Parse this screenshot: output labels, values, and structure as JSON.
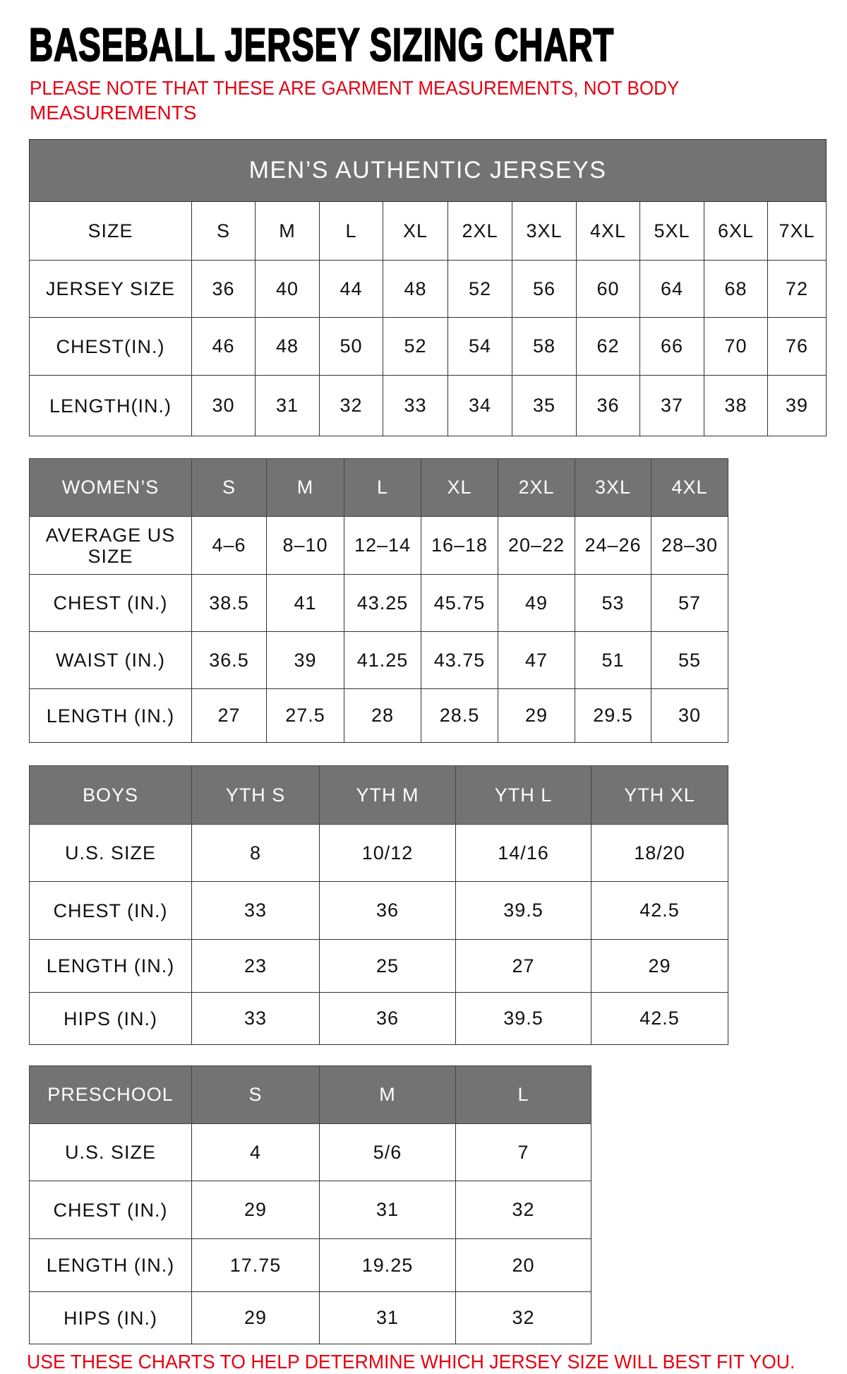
{
  "title": "BASEBALL JERSEY SIZING CHART",
  "note_line1": "PLEASE NOTE THAT THESE ARE GARMENT MEASUREMENTS, NOT BODY",
  "note_line2": "MEASUREMENTS",
  "footer": "USE THESE CHARTS TO HELP DETERMINE WHICH JERSEY SIZE WILL BEST FIT YOU.",
  "colors": {
    "header_bg": "#737373",
    "note_red": "#e60012"
  },
  "tables": [
    {
      "id": "mens",
      "banner": "MEN’S AUTHENTIC JERSEYS",
      "header": [
        "SIZE",
        "S",
        "M",
        "L",
        "XL",
        "2XL",
        "3XL",
        "4XL",
        "5XL",
        "6XL",
        "7XL"
      ],
      "header_style": "plain",
      "rows": [
        [
          "JERSEY SIZE",
          "36",
          "40",
          "44",
          "48",
          "52",
          "56",
          "60",
          "64",
          "68",
          "72"
        ],
        [
          "CHEST(IN.)",
          "46",
          "48",
          "50",
          "52",
          "54",
          "58",
          "62",
          "66",
          "70",
          "76"
        ],
        [
          "LENGTH(IN.)",
          "30",
          "31",
          "32",
          "33",
          "34",
          "35",
          "36",
          "37",
          "38",
          "39"
        ]
      ]
    },
    {
      "id": "womens",
      "header": [
        "WOMEN’S",
        "S",
        "M",
        "L",
        "XL",
        "2XL",
        "3XL",
        "4XL"
      ],
      "header_style": "gray",
      "rows": [
        [
          "AVERAGE US SIZE",
          "4–6",
          "8–10",
          "12–14",
          "16–18",
          "20–22",
          "24–26",
          "28–30"
        ],
        [
          "CHEST (IN.)",
          "38.5",
          "41",
          "43.25",
          "45.75",
          "49",
          "53",
          "57"
        ],
        [
          "WAIST (IN.)",
          "36.5",
          "39",
          "41.25",
          "43.75",
          "47",
          "51",
          "55"
        ],
        [
          "LENGTH (IN.)",
          "27",
          "27.5",
          "28",
          "28.5",
          "29",
          "29.5",
          "30"
        ]
      ]
    },
    {
      "id": "boys",
      "header": [
        "BOYS",
        "YTH S",
        "YTH M",
        "YTH L",
        "YTH XL"
      ],
      "header_style": "gray",
      "rows": [
        [
          "U.S. SIZE",
          "8",
          "10/12",
          "14/16",
          "18/20"
        ],
        [
          "CHEST (IN.)",
          "33",
          "36",
          "39.5",
          "42.5"
        ],
        [
          "LENGTH (IN.)",
          "23",
          "25",
          "27",
          "29"
        ],
        [
          "HIPS (IN.)",
          "33",
          "36",
          "39.5",
          "42.5"
        ]
      ]
    },
    {
      "id": "preschool",
      "header": [
        "PRESCHOOL",
        "S",
        "M",
        "L"
      ],
      "header_style": "gray",
      "rows": [
        [
          "U.S. SIZE",
          "4",
          "5/6",
          "7"
        ],
        [
          "CHEST (IN.)",
          "29",
          "31",
          "32"
        ],
        [
          "LENGTH (IN.)",
          "17.75",
          "19.25",
          "20"
        ],
        [
          "HIPS (IN.)",
          "29",
          "31",
          "32"
        ]
      ]
    }
  ]
}
